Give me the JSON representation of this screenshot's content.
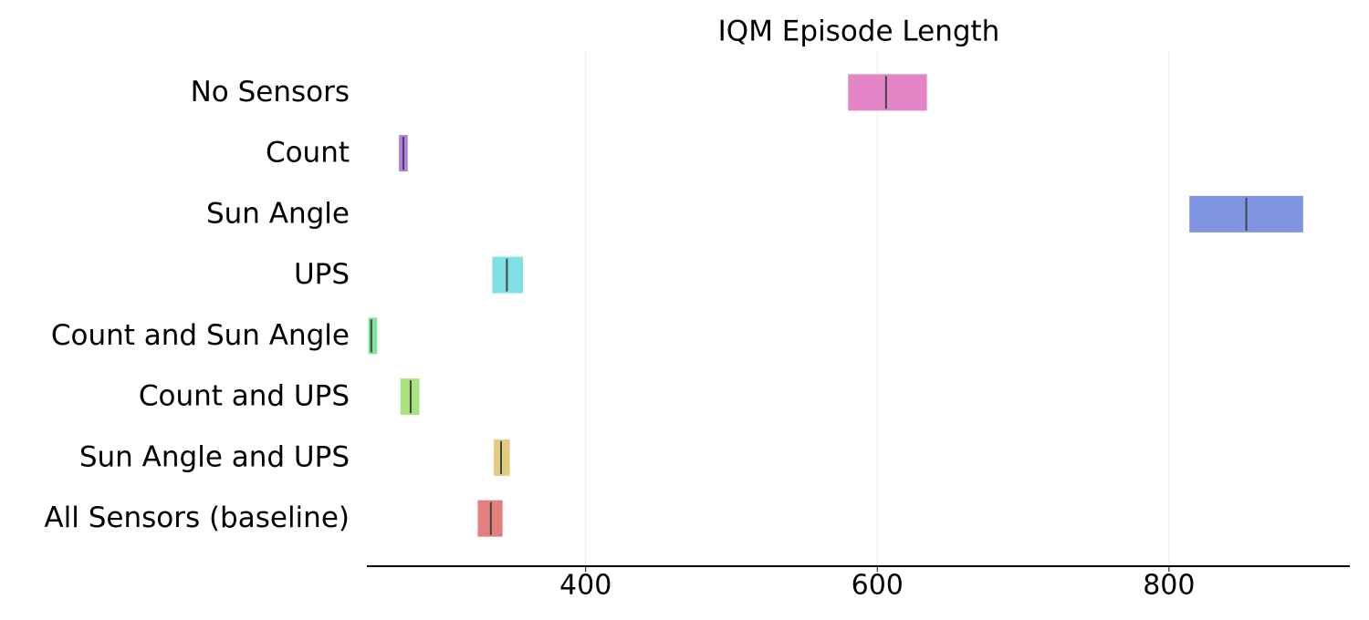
{
  "chart_data": {
    "type": "interval",
    "title": "IQM Episode Length",
    "categories": [
      "No Sensors",
      "Count",
      "Sun Angle",
      "UPS",
      "Count and Sun Angle",
      "Count and UPS",
      "Sun Angle and UPS",
      "All Sensors (baseline)"
    ],
    "values": [
      606,
      275,
      853,
      346,
      253,
      280,
      342,
      335
    ],
    "lower": [
      580,
      272,
      814,
      336,
      251,
      273,
      337,
      326
    ],
    "upper": [
      634,
      278,
      892,
      357,
      257,
      286,
      348,
      343
    ],
    "colors": [
      "#e384c7",
      "#b07ee3",
      "#7f95e3",
      "#7fe0e3",
      "#7fe39a",
      "#a9e37f",
      "#e3cc7f",
      "#e37f7f"
    ],
    "xlim": [
      250,
      924
    ],
    "xticks": [
      400,
      600,
      800
    ],
    "grid": true
  }
}
